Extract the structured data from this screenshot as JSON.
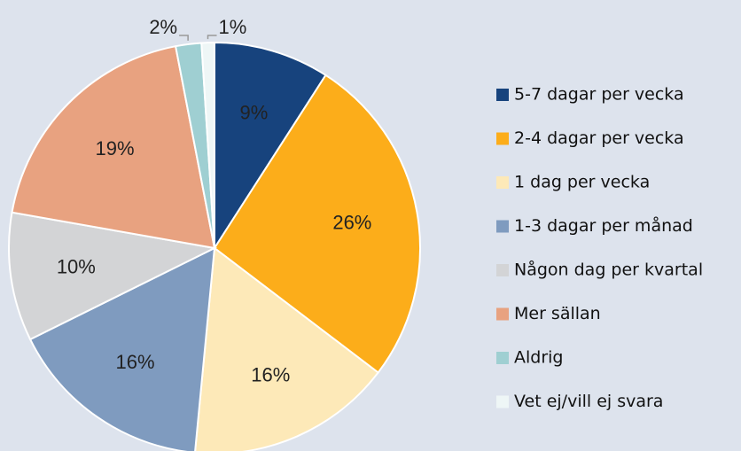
{
  "chart_data": {
    "type": "pie",
    "categories": [
      "5-7 dagar per vecka",
      "2-4 dagar per vecka",
      "1 dag per vecka",
      "1-3 dagar per månad",
      "Någon dag per kvartal",
      "Mer sällan",
      "Aldrig",
      "Vet ej/vill ej svara"
    ],
    "values": [
      9,
      26,
      16,
      16,
      10,
      19,
      2,
      1
    ],
    "value_labels": [
      "9%",
      "26%",
      "16%",
      "16%",
      "10%",
      "19%",
      "2%",
      "1%"
    ],
    "colors": [
      "#17437d",
      "#fcad1a",
      "#fde9b8",
      "#7f9bbf",
      "#d3d4d6",
      "#e8a280",
      "#9fcfd2",
      "#eef6f6"
    ],
    "legend": "right"
  }
}
